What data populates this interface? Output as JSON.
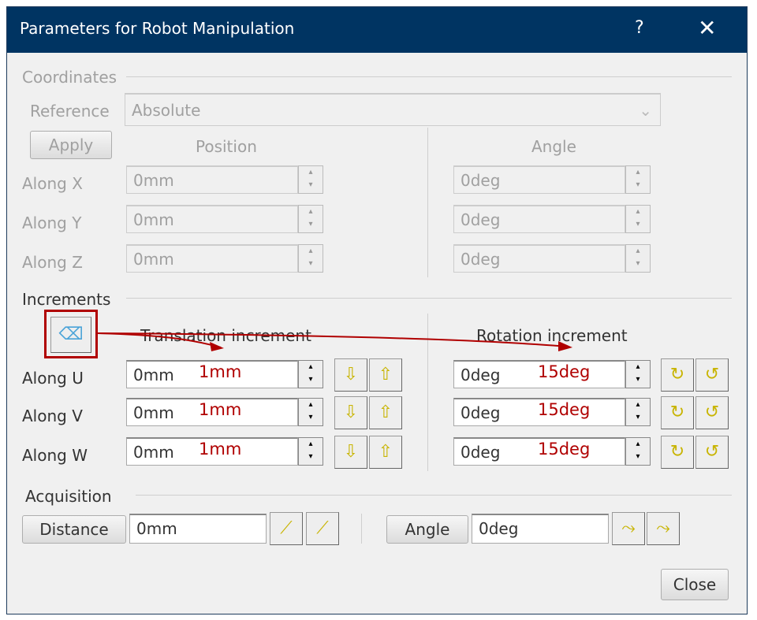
{
  "title": "Parameters for Robot Manipulation",
  "help_icon": "?",
  "close_icon": "✕",
  "coordinates": {
    "label": "Coordinates",
    "reference_label": "Reference",
    "reference_value": "Absolute",
    "apply": "Apply",
    "position": "Position",
    "angle": "Angle",
    "rows": [
      {
        "label": "Along X",
        "pos": "0mm",
        "ang": "0deg"
      },
      {
        "label": "Along Y",
        "pos": "0mm",
        "ang": "0deg"
      },
      {
        "label": "Along Z",
        "pos": "0mm",
        "ang": "0deg"
      }
    ]
  },
  "increments": {
    "label": "Increments",
    "translation": "Translation increment",
    "rotation": "Rotation increment",
    "rows": [
      {
        "label": "Along U",
        "trans": "0mm",
        "rot": "0deg"
      },
      {
        "label": "Along V",
        "trans": "0mm",
        "rot": "0deg"
      },
      {
        "label": "Along W",
        "trans": "0mm",
        "rot": "0deg"
      }
    ]
  },
  "annotations": {
    "trans": "1mm",
    "rot": "15deg",
    "color": "#b00000"
  },
  "acquisition": {
    "label": "Acquisition",
    "distance": "Distance",
    "distance_value": "0mm",
    "angle": "Angle",
    "angle_value": "0deg"
  },
  "close": "Close"
}
